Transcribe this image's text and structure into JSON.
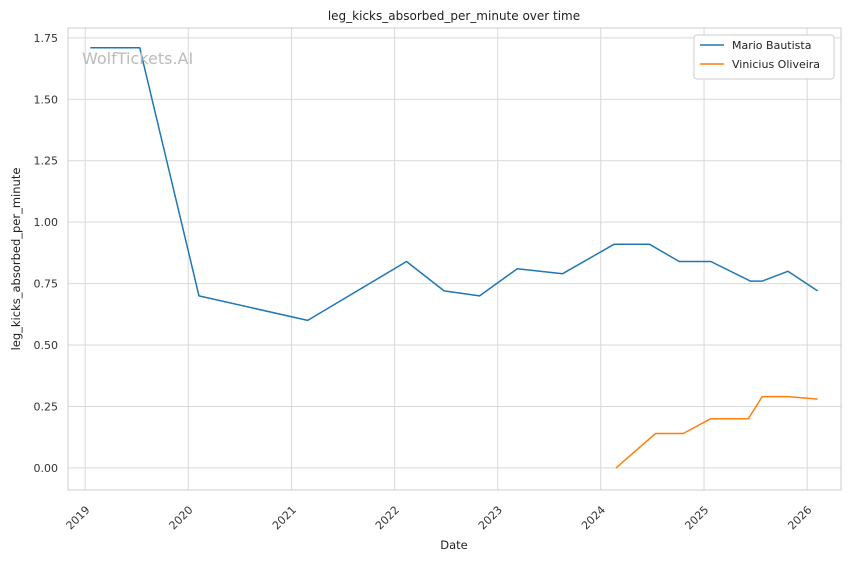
{
  "chart_data": {
    "type": "line",
    "title": "leg_kicks_absorbed_per_minute over time",
    "xlabel": "Date",
    "ylabel": "leg_kicks_absorbed_per_minute",
    "watermark": "WolfTickets.AI",
    "x_ticks": [
      "2019",
      "2020",
      "2021",
      "2022",
      "2023",
      "2024",
      "2025",
      "2026"
    ],
    "y_ticks": [
      "0.00",
      "0.25",
      "0.50",
      "0.75",
      "1.00",
      "1.25",
      "1.50",
      "1.75"
    ],
    "ylim": [
      -0.09,
      1.79
    ],
    "xlim": [
      "2018-11-01",
      "2026-05-01"
    ],
    "grid": true,
    "legend_position": "top-right",
    "series": [
      {
        "name": "Mario Bautista",
        "color": "#1f77b4",
        "points": [
          [
            "2019-01-19",
            1.71
          ],
          [
            "2019-07-13",
            1.71
          ],
          [
            "2020-02-08",
            0.7
          ],
          [
            "2021-02-27",
            0.6
          ],
          [
            "2022-02-12",
            0.84
          ],
          [
            "2022-06-25",
            0.72
          ],
          [
            "2022-10-29",
            0.7
          ],
          [
            "2023-03-11",
            0.81
          ],
          [
            "2023-08-19",
            0.79
          ],
          [
            "2024-02-17",
            0.91
          ],
          [
            "2024-06-22",
            0.91
          ],
          [
            "2024-10-05",
            0.84
          ],
          [
            "2025-01-25",
            0.84
          ],
          [
            "2025-06-14",
            0.76
          ],
          [
            "2025-07-26",
            0.76
          ],
          [
            "2025-10-25",
            0.8
          ],
          [
            "2026-02-07",
            0.72
          ]
        ]
      },
      {
        "name": "Vinicius Oliveira",
        "color": "#ff7f0e",
        "points": [
          [
            "2024-02-24",
            0.0
          ],
          [
            "2024-07-13",
            0.14
          ],
          [
            "2024-10-19",
            0.14
          ],
          [
            "2025-01-25",
            0.2
          ],
          [
            "2025-06-07",
            0.2
          ],
          [
            "2025-07-26",
            0.29
          ],
          [
            "2025-10-25",
            0.29
          ],
          [
            "2026-02-07",
            0.28
          ]
        ]
      }
    ]
  }
}
